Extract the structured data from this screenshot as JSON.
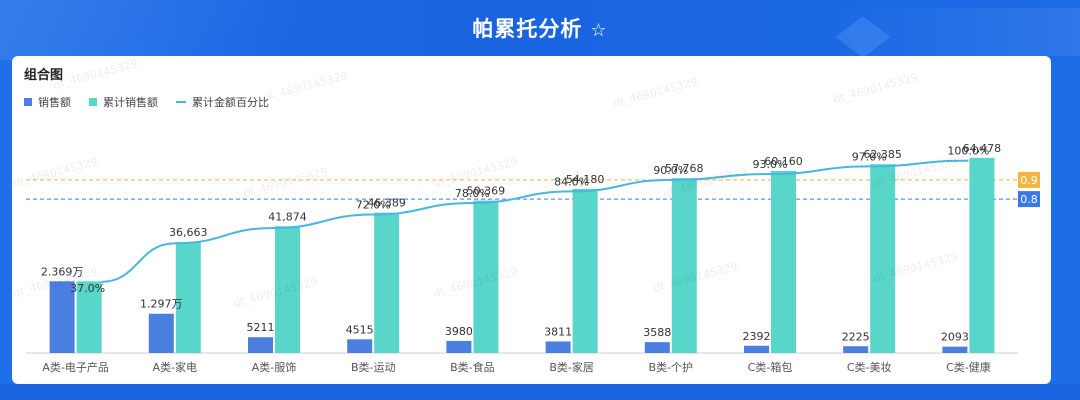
{
  "header": {
    "title": "帕累托分析",
    "star_icon": "star-outline-icon"
  },
  "card": {
    "title": "组合图"
  },
  "legend": [
    {
      "label": "销售额",
      "color": "#4a7fe0",
      "kind": "bar"
    },
    {
      "label": "累计销售额",
      "color": "#58d6c9",
      "kind": "bar"
    },
    {
      "label": "累计金额百分比",
      "color": "#46b7e0",
      "kind": "line"
    }
  ],
  "watermark": "dt_4690145329",
  "chart_data": {
    "type": "bar",
    "categories": [
      "A类-电子产品",
      "A类-家电",
      "A类-服饰",
      "B类-运动",
      "B类-食品",
      "B类-家居",
      "B类-个护",
      "C类-箱包",
      "C类-美妆",
      "C类-健康"
    ],
    "series": [
      {
        "name": "销售额",
        "values": [
          23690,
          12970,
          5211,
          4515,
          3980,
          3811,
          3588,
          2392,
          2225,
          2093
        ],
        "labels": [
          "2.369万",
          "1.297万",
          "5211",
          "4515",
          "3980",
          "3811",
          "3588",
          "2392",
          "2225",
          "2093"
        ],
        "color": "#4a7fe0"
      },
      {
        "name": "累计销售额",
        "values": [
          23690,
          36663,
          41874,
          46389,
          50369,
          54180,
          57768,
          60160,
          62385,
          64478
        ],
        "labels": [
          "",
          "36,663",
          "41,874",
          "46,389",
          "50,369",
          "54,180",
          "57,768",
          "60,160",
          "62,385",
          "64,478"
        ],
        "color": "#58d6c9"
      },
      {
        "name": "累计金额百分比",
        "values": [
          0.37,
          0.57,
          0.65,
          0.72,
          0.78,
          0.84,
          0.9,
          0.93,
          0.97,
          1.0
        ],
        "labels": [
          "37.0%",
          "",
          "",
          "72.0%",
          "78.0%",
          "84.0%",
          "90.0%",
          "93.0%",
          "97.0%",
          "100.0%"
        ],
        "color": "#46b7e0"
      }
    ],
    "bar_ylim": [
      0,
      75000
    ],
    "line_ylim": [
      0,
      1.18
    ],
    "reference_lines": [
      {
        "value": 0.9,
        "label": "0.9",
        "color": "#f5b342"
      },
      {
        "value": 0.8,
        "label": "0.8",
        "color": "#3a78e8"
      }
    ],
    "grid": false,
    "legend_position": "top-left"
  }
}
